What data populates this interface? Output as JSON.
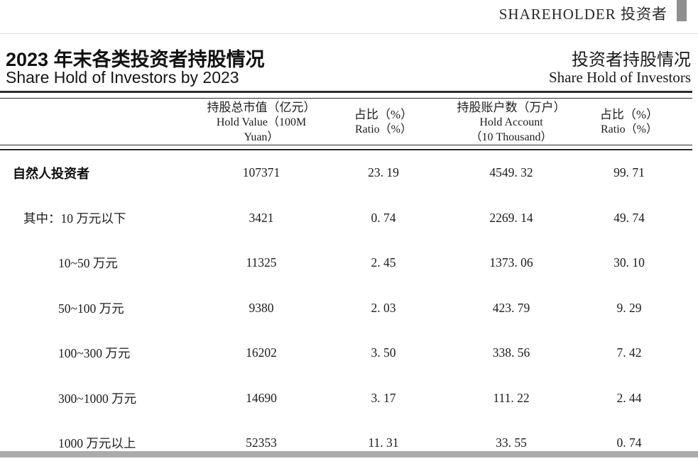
{
  "page": {
    "running_header_right": "SHAREHOLDER 投资者"
  },
  "titles": {
    "left_zh": "2023 年末各类投资者持股情况",
    "left_en": "Share Hold of Investors by 2023",
    "right_zh": "投资者持股情况",
    "right_en": "Share Hold of Investors"
  },
  "table": {
    "headers": {
      "hold_value_zh": "持股总市值（亿元）",
      "hold_value_en": "Hold Value（100M Yuan）",
      "ratio1_zh": "占比（%）",
      "ratio1_en": "Ratio（%）",
      "hold_account_zh": "持股账户数（万户）",
      "hold_account_en": "Hold Account",
      "hold_account_en2": "（10 Thousand）",
      "ratio2_zh": "占比（%）",
      "ratio2_en": "Ratio（%）"
    },
    "rows": [
      {
        "label": "自然人投资者",
        "hold_value": "107371",
        "ratio1": "23. 19",
        "hold_account": "4549. 32",
        "ratio2": "99. 71"
      },
      {
        "label": "其中：10 万元以下",
        "hold_value": "3421",
        "ratio1": "0. 74",
        "hold_account": "2269. 14",
        "ratio2": "49. 74"
      },
      {
        "label": "10~50 万元",
        "hold_value": "11325",
        "ratio1": "2. 45",
        "hold_account": "1373. 06",
        "ratio2": "30. 10"
      },
      {
        "label": "50~100 万元",
        "hold_value": "9380",
        "ratio1": "2. 03",
        "hold_account": "423. 79",
        "ratio2": "9. 29"
      },
      {
        "label": "100~300 万元",
        "hold_value": "16202",
        "ratio1": "3. 50",
        "hold_account": "338. 56",
        "ratio2": "7. 42"
      },
      {
        "label": "300~1000 万元",
        "hold_value": "14690",
        "ratio1": "3. 17",
        "hold_account": "111. 22",
        "ratio2": "2. 44"
      },
      {
        "label": "1000 万元以上",
        "hold_value": "52353",
        "ratio1": "11. 31",
        "hold_account": "33. 55",
        "ratio2": "0. 74"
      }
    ]
  }
}
